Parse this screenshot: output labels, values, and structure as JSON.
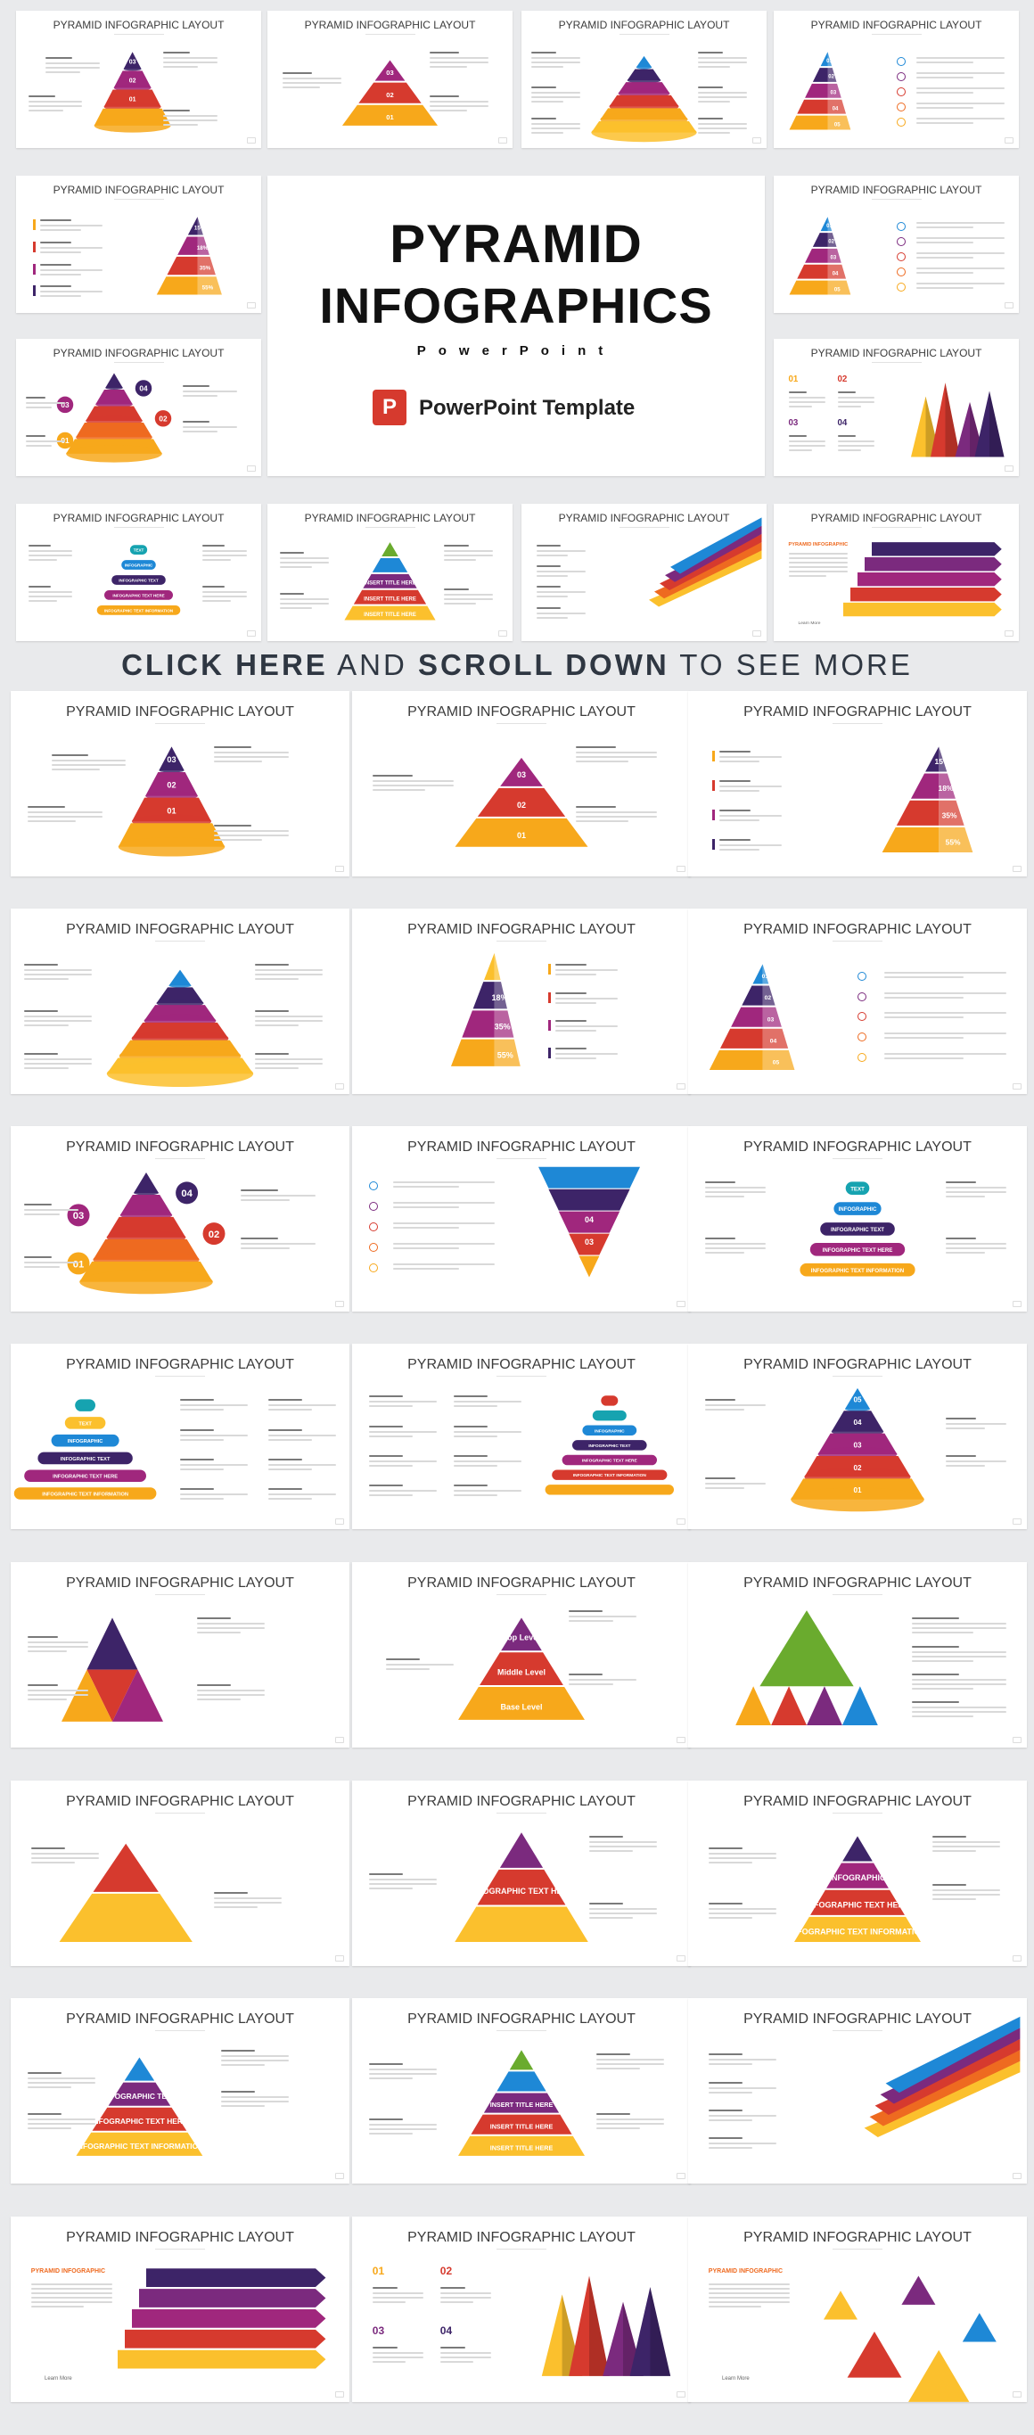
{
  "cover": {
    "title_line1": "PYRAMID",
    "title_line2": "INFOGRAPHICS",
    "subtitle": "PowerPoint",
    "badge_letter": "P",
    "template_label": "PowerPoint Template"
  },
  "cta": {
    "part1": "CLICK HERE",
    "part2": "AND",
    "part3": "SCROLL DOWN",
    "part4": "TO SEE MORE"
  },
  "slide_title": "PYRAMID INFOGRAPHIC LAYOUT",
  "colors": {
    "purple_dark": "#3d2468",
    "purple": "#7b2a7e",
    "magenta": "#a0277d",
    "red": "#d63a2e",
    "orange": "#ee6a20",
    "yellow": "#f7a81b",
    "gold": "#fbc02d",
    "blue": "#1e88d6",
    "teal": "#16a3b0",
    "green": "#6aab2e"
  },
  "labels": {
    "n01": "01",
    "n02": "02",
    "n03": "03",
    "n04": "04",
    "n05": "05",
    "p15": "15%",
    "p18": "18%",
    "p35": "35%",
    "p55": "55%",
    "insert": "Insert title here",
    "text": "TEXT",
    "infographic": "INFOGRAPHIC",
    "infographic_text": "INFOGRAPHIC TEXT",
    "infographic_text_here": "INFOGRAPHIC TEXT HERE",
    "infographic_text_information": "INFOGRAPHIC TEXT INFORMATION",
    "top_level": "Top Level",
    "middle_level": "Middle Level",
    "base_level": "Base Level",
    "insert_title_caps": "INSERT TITLE HERE",
    "pyramid_infographic": "PYRAMID INFOGRAPHIC",
    "learn_more": "Learn More"
  }
}
